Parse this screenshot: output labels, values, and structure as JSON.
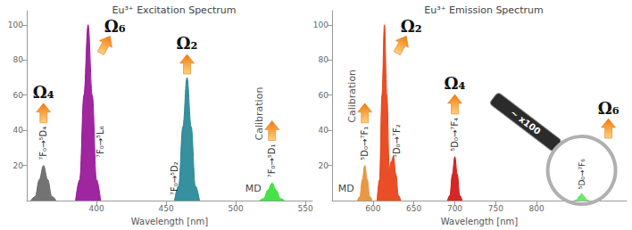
{
  "chart_data": [
    {
      "type": "line",
      "title": "Eu³⁺ Excitation Spectrum",
      "xlabel": "Wavelength [nm]",
      "xlim": [
        350,
        555
      ],
      "xticks": [
        400,
        450,
        500,
        550
      ],
      "ylim": [
        0,
        108
      ],
      "yticks": [
        20,
        40,
        60,
        80,
        100
      ],
      "grid": false,
      "series": [
        {
          "name": "⁷F₀→⁵D₄",
          "color": "#6b6b6b",
          "annotation": "Ω₄",
          "x": [
            353,
            356,
            359,
            362,
            365,
            368,
            371
          ],
          "values": [
            0,
            2.4,
            12,
            20,
            12,
            2.4,
            0
          ]
        },
        {
          "name": "⁷F₀→⁵L₆",
          "color": "#9a1a9a",
          "annotation": "Ω₆",
          "x": [
            385,
            388,
            391,
            394,
            397,
            400,
            403
          ],
          "values": [
            0,
            12,
            60,
            100,
            60,
            12,
            0
          ]
        },
        {
          "name": "⁷F₀→⁵D₂",
          "color": "#2b8a98",
          "annotation": "Ω₂",
          "x": [
            456,
            459,
            462,
            465,
            468,
            471,
            474
          ],
          "values": [
            0,
            8.4,
            42,
            70,
            42,
            8.4,
            0
          ]
        },
        {
          "name": "⁷F₀→⁵D₁",
          "color": "#3de03d",
          "annotation": "Calibration",
          "note": "MD",
          "x": [
            517,
            520,
            523,
            526,
            529,
            532,
            535
          ],
          "values": [
            0,
            1.2,
            6,
            10,
            6,
            1.2,
            0
          ]
        }
      ]
    },
    {
      "type": "line",
      "title": "Eu³⁺ Emission Spectrum",
      "xlabel": "Wavelength [nm]",
      "xlim": [
        550,
        910
      ],
      "xticks": [
        600,
        650,
        700,
        750,
        800
      ],
      "ylim": [
        0,
        108
      ],
      "yticks": [
        20,
        40,
        60,
        80,
        100
      ],
      "grid": false,
      "series": [
        {
          "name": "⁵D₀→⁷F₁",
          "color": "#e8923a",
          "annotation": "Calibration",
          "note": "MD",
          "x": [
            581,
            584,
            587,
            590,
            593,
            596,
            599
          ],
          "values": [
            0,
            2.4,
            12,
            20,
            12,
            2.4,
            0
          ]
        },
        {
          "name": "⁵D₀→⁷F₂",
          "color": "#e8441a",
          "annotation": "Ω₂",
          "x": [
            605,
            608,
            611,
            614,
            617,
            620,
            622,
            625,
            628,
            631,
            634
          ],
          "values": [
            0,
            12,
            60,
            100,
            60,
            18,
            22,
            25,
            15,
            3,
            0
          ]
        },
        {
          "name": "⁵D₀→⁷F₄",
          "color": "#d41a1a",
          "annotation": "Ω₄",
          "x": [
            691,
            694,
            697,
            700,
            703,
            706,
            709
          ],
          "values": [
            0,
            3,
            15,
            25,
            15,
            3,
            0
          ]
        },
        {
          "name": "⁵D₀→⁷F₆",
          "color": "#3de03d",
          "annotation": "Ω₆",
          "magnifier_label": "~ x100",
          "x": [
            846,
            849,
            852,
            855,
            858,
            861,
            864
          ],
          "values": [
            0,
            0.5,
            2.4,
            4,
            2.4,
            0.5,
            0
          ]
        }
      ]
    }
  ]
}
